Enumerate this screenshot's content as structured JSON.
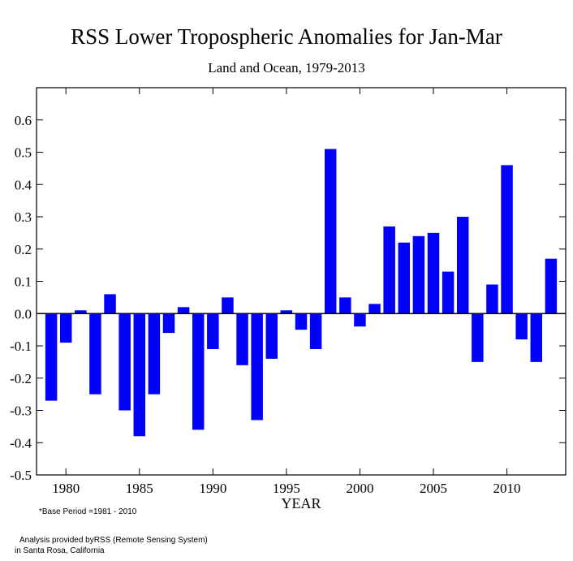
{
  "chart_data": {
    "type": "bar",
    "title": "RSS Lower Tropospheric Anomalies for Jan-Mar",
    "subtitle": "Land and Ocean, 1979-2013",
    "xlabel": "YEAR",
    "ylabel": "",
    "ylim": [
      -0.5,
      0.7
    ],
    "xlim": [
      1978,
      2014
    ],
    "yticks": [
      "0.6",
      "0.5",
      "0.4",
      "0.3",
      "0.2",
      "0.1",
      "0.0",
      "-0.1",
      "-0.2",
      "-0.3",
      "-0.4",
      "-0.5"
    ],
    "xticks": [
      "1980",
      "1985",
      "1990",
      "1995",
      "2000",
      "2005",
      "2010"
    ],
    "bar_color": "#0000ff",
    "categories": [
      1979,
      1980,
      1981,
      1982,
      1983,
      1984,
      1985,
      1986,
      1987,
      1988,
      1989,
      1990,
      1991,
      1992,
      1993,
      1994,
      1995,
      1996,
      1997,
      1998,
      1999,
      2000,
      2001,
      2002,
      2003,
      2004,
      2005,
      2006,
      2007,
      2008,
      2009,
      2010,
      2011,
      2012,
      2013
    ],
    "values": [
      -0.27,
      -0.09,
      0.01,
      -0.25,
      0.06,
      -0.3,
      -0.38,
      -0.25,
      -0.06,
      0.02,
      -0.36,
      -0.11,
      0.05,
      -0.16,
      -0.33,
      -0.14,
      0.01,
      -0.05,
      -0.11,
      0.51,
      0.05,
      -0.04,
      0.03,
      0.27,
      0.22,
      0.24,
      0.25,
      0.13,
      0.3,
      -0.15,
      0.09,
      0.46,
      -0.08,
      -0.15,
      0.17
    ]
  },
  "footnote": "*Base Period =1981 - 2010",
  "credit_line1": "Analysis provided byRSS (Remote Sensing System)",
  "credit_line2": "in Santa Rosa, California"
}
